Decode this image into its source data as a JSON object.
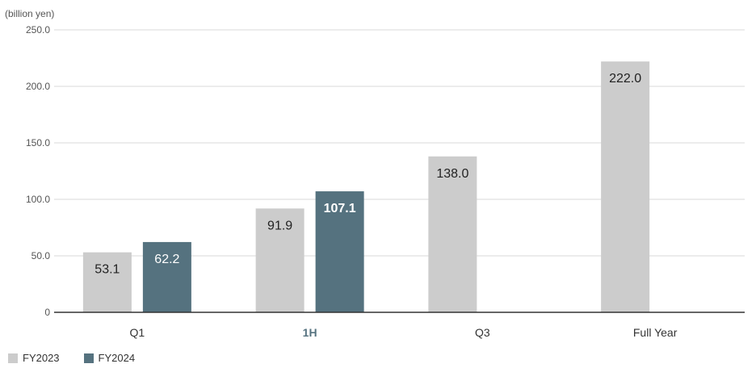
{
  "unit_label": "(billion yen)",
  "legend": [
    {
      "label": "FY2023",
      "color": "#cccccc"
    },
    {
      "label": "FY2024",
      "color": "#55727f"
    }
  ],
  "chart_data": {
    "type": "bar",
    "categories": [
      "Q1",
      "1H",
      "Q3",
      "Full Year"
    ],
    "highlight_category": "1H",
    "series": [
      {
        "name": "FY2023",
        "color": "#cccccc",
        "values": [
          53.1,
          91.9,
          138.0,
          222.0
        ]
      },
      {
        "name": "FY2024",
        "color": "#55727f",
        "values": [
          62.2,
          107.1,
          null,
          null
        ]
      }
    ],
    "value_labels": [
      [
        "53.1",
        "91.9",
        "138.0",
        "222.0"
      ],
      [
        "62.2",
        "107.1",
        "",
        ""
      ]
    ],
    "bold_value_label": "107.1",
    "ylim": [
      0,
      250
    ],
    "yticks": [
      {
        "value": 0,
        "label": "0"
      },
      {
        "value": 50,
        "label": "50.0"
      },
      {
        "value": 100,
        "label": "100.0"
      },
      {
        "value": 150,
        "label": "150.0"
      },
      {
        "value": 200,
        "label": "200.0"
      },
      {
        "value": 250,
        "label": "250.0"
      }
    ],
    "grid": true,
    "legend_position": "bottom-left"
  }
}
